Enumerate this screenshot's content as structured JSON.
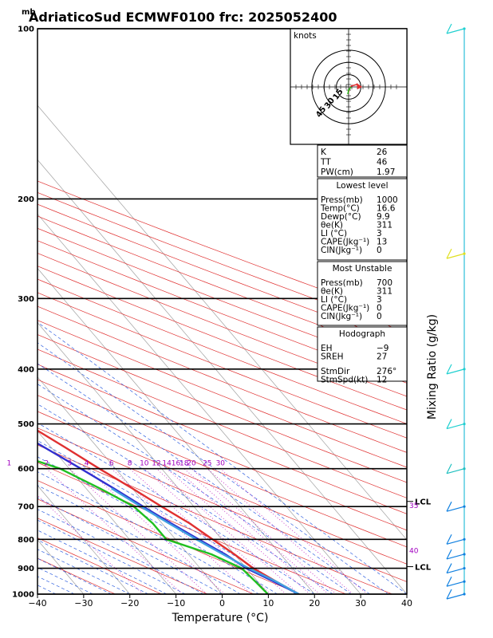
{
  "title": "AdriaticoSud ECMWF0100  frc: 2025052400",
  "units_mb": "mb",
  "chart_data": {
    "type": "line",
    "xlabel": "Temperature (°C)",
    "ylabel": "mb",
    "right_label": "Mixing Ratio  (g/kg)",
    "x_ticks": [
      -40,
      -30,
      -20,
      -10,
      0,
      10,
      20,
      30,
      40
    ],
    "p_ticks": [
      100,
      200,
      300,
      400,
      500,
      600,
      700,
      800,
      900,
      1000
    ],
    "xlim": [
      -40,
      40
    ],
    "plim": [
      100,
      1000
    ],
    "series": [
      {
        "color": "#e03030",
        "points": [
          [
            1000,
            16.6
          ],
          [
            950,
            14
          ],
          [
            900,
            11.5
          ],
          [
            850,
            10
          ],
          [
            800,
            8
          ],
          [
            750,
            6
          ],
          [
            700,
            3
          ],
          [
            650,
            0
          ],
          [
            600,
            -3.5
          ],
          [
            550,
            -7
          ],
          [
            500,
            -11
          ],
          [
            450,
            -16
          ],
          [
            400,
            -22
          ],
          [
            350,
            -29
          ],
          [
            300,
            -37
          ],
          [
            275,
            -41
          ],
          [
            250,
            -45
          ],
          [
            225,
            -42
          ],
          [
            200,
            -40
          ],
          [
            175,
            -42
          ],
          [
            150,
            -45
          ],
          [
            125,
            -49
          ],
          [
            100,
            -53
          ]
        ]
      },
      {
        "color": "#20c020",
        "points": [
          [
            1000,
            9.9
          ],
          [
            950,
            9.5
          ],
          [
            900,
            9
          ],
          [
            850,
            5
          ],
          [
            800,
            -2
          ],
          [
            750,
            -2
          ],
          [
            700,
            -3
          ],
          [
            650,
            -7
          ],
          [
            600,
            -12
          ],
          [
            550,
            -22
          ],
          [
            500,
            -40
          ],
          [
            450,
            -44
          ],
          [
            400,
            -52
          ],
          [
            300,
            -64
          ],
          [
            200,
            -76
          ],
          [
            100,
            -92
          ]
        ]
      },
      {
        "color": "#3030d0",
        "points": [
          [
            1000,
            16.6
          ],
          [
            950,
            13.5
          ],
          [
            900,
            10
          ],
          [
            850,
            8
          ],
          [
            800,
            5
          ],
          [
            750,
            2
          ],
          [
            700,
            -1
          ],
          [
            650,
            -4
          ],
          [
            600,
            -7.5
          ],
          [
            550,
            -11.5
          ],
          [
            500,
            -16
          ],
          [
            450,
            -21
          ],
          [
            400,
            -27
          ],
          [
            350,
            -34
          ],
          [
            300,
            -42
          ],
          [
            250,
            -52
          ],
          [
            200,
            -63
          ],
          [
            150,
            -77
          ],
          [
            100,
            -92
          ]
        ]
      },
      {
        "color": "#40a0e0",
        "points": [
          [
            1000,
            16.6
          ],
          [
            950,
            14
          ],
          [
            900,
            10.5
          ],
          [
            850,
            7.5
          ],
          [
            800,
            4.5
          ],
          [
            750,
            1.5
          ],
          [
            700,
            -1.5
          ],
          [
            650,
            -4.5
          ]
        ]
      }
    ],
    "mixing_ratio_labels": [
      "1",
      "2",
      "3",
      "4",
      "6",
      "8",
      "10",
      "12",
      "14",
      "16",
      "18",
      "20",
      "25",
      "30"
    ],
    "mixing_ratio_values": [
      1,
      2,
      3,
      4,
      6,
      8,
      10,
      12,
      14,
      16,
      18,
      20,
      25,
      30
    ],
    "side_labels": [
      {
        "text": "LCL",
        "p": 690
      },
      {
        "text": "35",
        "p": 700
      },
      {
        "text": "40",
        "p": 840
      },
      {
        "text": "LCL",
        "p": 900
      }
    ],
    "hodograph": {
      "units": "knots",
      "rings": [
        "15",
        "30",
        "45"
      ],
      "ring_values": [
        15,
        30,
        45
      ]
    },
    "wind_barbs": [
      {
        "p": 100,
        "color": "#20d0d0"
      },
      {
        "p": 250,
        "color": "#e0e020"
      },
      {
        "p": 400,
        "color": "#20d0d0"
      },
      {
        "p": 500,
        "color": "#20d0d0"
      },
      {
        "p": 600,
        "color": "#20c0c0"
      },
      {
        "p": 700,
        "color": "#1080e0"
      },
      {
        "p": 800,
        "color": "#1080e0"
      },
      {
        "p": 850,
        "color": "#1080e0"
      },
      {
        "p": 900,
        "color": "#1080e0"
      },
      {
        "p": 950,
        "color": "#1080e0"
      },
      {
        "p": 1000,
        "color": "#1080e0"
      }
    ]
  },
  "indices": {
    "top": [
      {
        "label": "K",
        "value": "26"
      },
      {
        "label": "TT",
        "value": "46"
      },
      {
        "label": "PW(cm)",
        "value": "1.97"
      }
    ],
    "lowest_level": {
      "header": "Lowest level",
      "rows": [
        {
          "label": "Press(mb)",
          "value": "1000"
        },
        {
          "label": "Temp(°C)",
          "value": "16.6"
        },
        {
          "label": "Dewp(°C)",
          "value": "9.9"
        },
        {
          "label": "θe(K)",
          "value": "311"
        },
        {
          "label": "LI (°C)",
          "value": "3"
        },
        {
          "label": "CAPE(Jkg⁻¹)",
          "value": "13"
        },
        {
          "label": "CIN(Jkg⁻¹)",
          "value": "0"
        }
      ]
    },
    "most_unstable": {
      "header": "Most Unstable",
      "rows": [
        {
          "label": "Press(mb)",
          "value": "700"
        },
        {
          "label": "θe(K)",
          "value": "311"
        },
        {
          "label": "LI (°C)",
          "value": "3"
        },
        {
          "label": "CAPE(Jkg⁻¹)",
          "value": "0"
        },
        {
          "label": "CIN(Jkg⁻¹)",
          "value": "0"
        }
      ]
    },
    "hodograph": {
      "header": "Hodograph",
      "rows": [
        {
          "label": "EH",
          "value": "−9"
        },
        {
          "label": "SREH",
          "value": "27"
        },
        {
          "label": "StmDir",
          "value": "276°"
        },
        {
          "label": "StmSpd(kt)",
          "value": "12"
        }
      ]
    }
  }
}
